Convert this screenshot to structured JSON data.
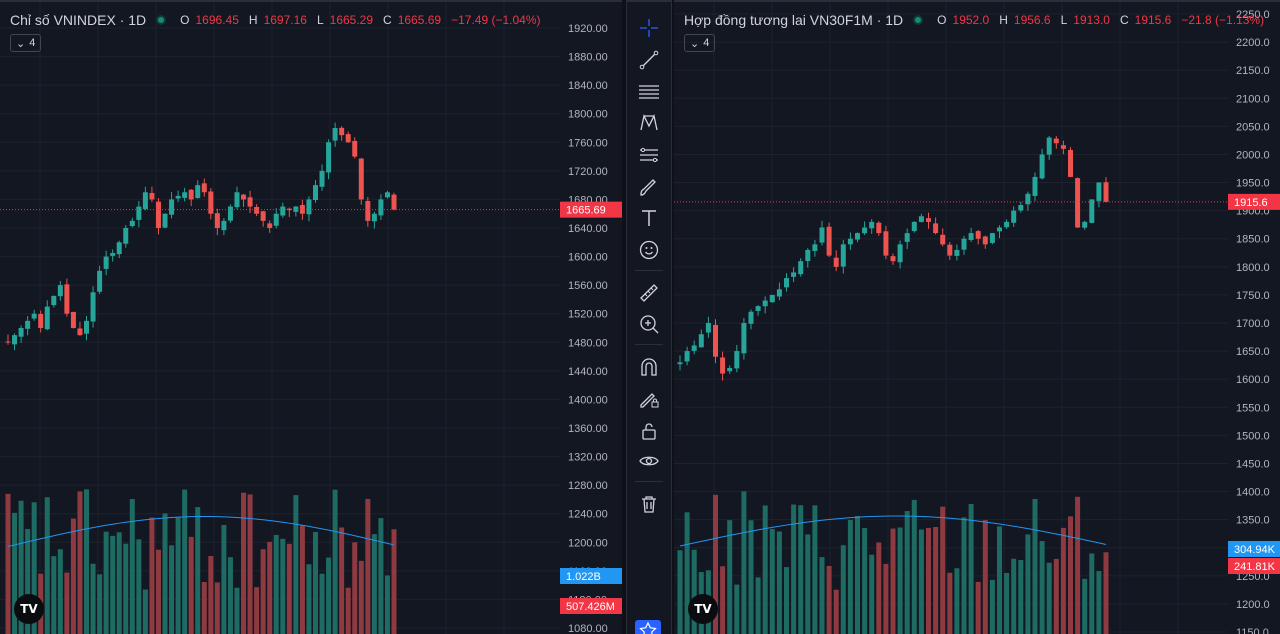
{
  "left_chart": {
    "title": "Chỉ số VNINDEX · 1D",
    "ohlc": [
      {
        "k": "O",
        "v": "1696.45"
      },
      {
        "k": "H",
        "v": "1697.16"
      },
      {
        "k": "L",
        "v": "1665.29"
      },
      {
        "k": "C",
        "v": "1665.69"
      }
    ],
    "change": "−17.49 (−1.04%)",
    "indicator_count": "4",
    "price_axis": [
      "1920.00",
      "1880.00",
      "1840.00",
      "1800.00",
      "1760.00",
      "1720.00",
      "1680.00",
      "1640.00",
      "1600.00",
      "1560.00",
      "1520.00",
      "1480.00",
      "1440.00",
      "1400.00",
      "1360.00",
      "1320.00",
      "1280.00",
      "1240.00",
      "1200.00",
      "1160.00",
      "1120.00",
      "1080.00"
    ],
    "axis_max": 1920,
    "axis_min": 1080,
    "last_price_label": "1665.69",
    "last_price": 1665.69,
    "volume_ma_label": "1.022B",
    "volume_label": "507.426M",
    "colors": {
      "up": "#26a69a",
      "down": "#ef5350",
      "ma": "#2196f3",
      "ma_badge": "#2196f3",
      "down_badge": "#f23645"
    }
  },
  "right_chart": {
    "title": "Hợp đồng tương lai VN30F1M · 1D",
    "ohlc": [
      {
        "k": "O",
        "v": "1952.0"
      },
      {
        "k": "H",
        "v": "1956.6"
      },
      {
        "k": "L",
        "v": "1913.0"
      },
      {
        "k": "C",
        "v": "1915.6"
      }
    ],
    "change": "−21.8 (−1.13%)",
    "indicator_count": "4",
    "price_axis": [
      "2250.0",
      "2200.0",
      "2150.0",
      "2100.0",
      "2050.0",
      "2000.0",
      "1950.0",
      "1900.0",
      "1850.0",
      "1800.0",
      "1750.0",
      "1700.0",
      "1650.0",
      "1600.0",
      "1550.0",
      "1500.0",
      "1450.0",
      "1400.0",
      "1350.0",
      "1300.0",
      "1250.0",
      "1200.0",
      "1150.0"
    ],
    "axis_max": 2250,
    "axis_min": 1150,
    "last_price_label": "1915.6",
    "last_price": 1915.6,
    "volume_ma_label": "304.94K",
    "volume_label": "241.81K",
    "colors": {
      "up": "#26a69a",
      "down": "#ef5350",
      "ma": "#2196f3",
      "ma_badge": "#2196f3",
      "down_badge": "#f23645"
    }
  },
  "toolbar": {
    "tools": [
      "crosshair-icon",
      "trend-line-icon",
      "fib-retracement-icon",
      "pattern-icon",
      "forecast-icon",
      "brush-icon",
      "text-icon",
      "emoji-icon",
      "ruler-icon",
      "zoom-in-icon",
      "magnet-icon",
      "lock-drawing-icon",
      "lock-icon",
      "eye-icon",
      "trash-icon",
      "favorites-star-icon"
    ]
  },
  "logo_text": "TV"
}
